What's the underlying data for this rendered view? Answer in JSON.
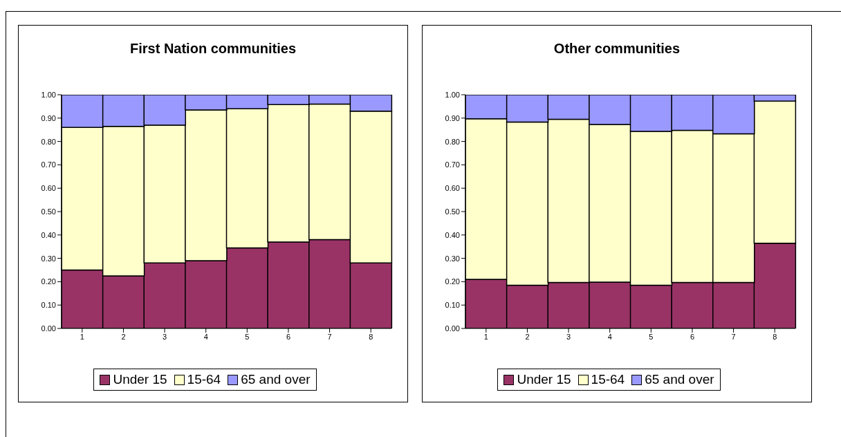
{
  "chart_data": [
    {
      "type": "bar",
      "title": "First Nation communities",
      "categories": [
        "1",
        "2",
        "3",
        "4",
        "5",
        "6",
        "7",
        "8"
      ],
      "stacked": true,
      "legend": "bottom",
      "grid": false,
      "ylim": [
        0,
        1
      ],
      "yticks": [
        {
          "value": 0,
          "label": "0.00"
        },
        {
          "value": 0.1,
          "label": "0.10"
        },
        {
          "value": 0.2,
          "label": "0.20"
        },
        {
          "value": 0.3,
          "label": "0.30"
        },
        {
          "value": 0.4,
          "label": "0.40"
        },
        {
          "value": 0.5,
          "label": "0.50"
        },
        {
          "value": 0.6,
          "label": "0.60"
        },
        {
          "value": 0.7,
          "label": "0.70"
        },
        {
          "value": 0.8,
          "label": "0.80"
        },
        {
          "value": 0.9,
          "label": "0.90"
        },
        {
          "value": 1,
          "label": "1.00"
        }
      ],
      "series": [
        {
          "name": "Under 15",
          "color": "#993366",
          "values": [
            0.25,
            0.225,
            0.28,
            0.29,
            0.345,
            0.37,
            0.38,
            0.28
          ]
        },
        {
          "name": "15-64",
          "color": "#ffffcc",
          "values": [
            0.61,
            0.64,
            0.59,
            0.645,
            0.595,
            0.588,
            0.58,
            0.65
          ]
        },
        {
          "name": "65 and over",
          "color": "#9999ff",
          "values": [
            0.14,
            0.135,
            0.13,
            0.065,
            0.06,
            0.042,
            0.04,
            0.07
          ]
        }
      ]
    },
    {
      "type": "bar",
      "title": "Other communities",
      "categories": [
        "1",
        "2",
        "3",
        "4",
        "5",
        "6",
        "7",
        "8"
      ],
      "stacked": true,
      "legend": "bottom",
      "grid": false,
      "ylim": [
        0,
        1
      ],
      "yticks": [
        {
          "value": 0,
          "label": "0.00"
        },
        {
          "value": 0.1,
          "label": "0.10"
        },
        {
          "value": 0.2,
          "label": "0.20"
        },
        {
          "value": 0.3,
          "label": "0.30"
        },
        {
          "value": 0.4,
          "label": "0.40"
        },
        {
          "value": 0.5,
          "label": "0.50"
        },
        {
          "value": 0.6,
          "label": "0.60"
        },
        {
          "value": 0.7,
          "label": "0.70"
        },
        {
          "value": 0.8,
          "label": "0.80"
        },
        {
          "value": 0.9,
          "label": "0.90"
        },
        {
          "value": 1,
          "label": "1.00"
        }
      ],
      "series": [
        {
          "name": "Under 15",
          "color": "#993366",
          "values": [
            0.21,
            0.185,
            0.197,
            0.198,
            0.185,
            0.197,
            0.197,
            0.365
          ]
        },
        {
          "name": "15-64",
          "color": "#ffffcc",
          "values": [
            0.687,
            0.698,
            0.698,
            0.675,
            0.658,
            0.651,
            0.636,
            0.608
          ]
        },
        {
          "name": "65 and over",
          "color": "#9999ff",
          "values": [
            0.103,
            0.117,
            0.105,
            0.127,
            0.157,
            0.152,
            0.167,
            0.027
          ]
        }
      ]
    }
  ]
}
